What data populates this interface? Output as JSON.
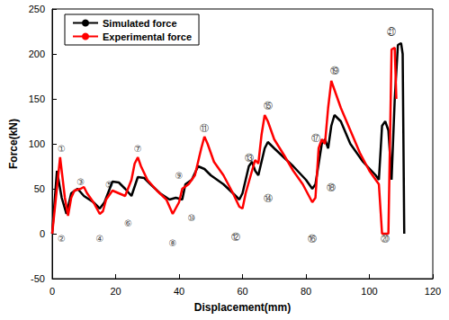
{
  "chart_data": {
    "type": "line",
    "x_label": "Displacement(mm)",
    "y_label": "Force(kN)",
    "xlim": [
      0,
      120
    ],
    "xticks": [
      0,
      20,
      40,
      60,
      80,
      100,
      120
    ],
    "ylim": [
      -50,
      250
    ],
    "yticks": [
      -50,
      0,
      50,
      100,
      150,
      200,
      250
    ],
    "grid": false,
    "legend": "upper left",
    "marker": "none",
    "series": [
      {
        "name": "Simulated force",
        "color": "#000000",
        "x": [
          0,
          1.5,
          3,
          4.5,
          6,
          8,
          10,
          13,
          15,
          16.5,
          19,
          21,
          23,
          25,
          27,
          29,
          31,
          34,
          37,
          39,
          41,
          42,
          44,
          46,
          48,
          50,
          54,
          57,
          59,
          60,
          62,
          63,
          64,
          65,
          67,
          68,
          70,
          73,
          76,
          80,
          82,
          83,
          85,
          86,
          87,
          88,
          89,
          91,
          94,
          98,
          102,
          103,
          104,
          105,
          106,
          107,
          108,
          109,
          110,
          110.5,
          111
        ],
        "values": [
          0,
          70,
          40,
          22,
          45,
          50,
          42,
          35,
          28,
          35,
          58,
          57,
          50,
          42,
          63,
          62,
          55,
          45,
          38,
          40,
          38,
          55,
          60,
          75,
          72,
          65,
          55,
          45,
          38,
          45,
          75,
          80,
          70,
          65,
          95,
          102,
          95,
          85,
          75,
          60,
          50,
          55,
          100,
          105,
          95,
          120,
          132,
          125,
          100,
          80,
          65,
          60,
          120,
          125,
          115,
          60,
          150,
          210,
          212,
          200,
          0
        ]
      },
      {
        "name": "Experimental force",
        "color": "#ff0000",
        "x": [
          0,
          2.5,
          4,
          5,
          6,
          7,
          9,
          10,
          11,
          13,
          15,
          16,
          17,
          19,
          21,
          23,
          25,
          26,
          27,
          28,
          30,
          33,
          36,
          38,
          40,
          41,
          43,
          45,
          47,
          48,
          49,
          51,
          54,
          57,
          59,
          60,
          61,
          63,
          64,
          65,
          66,
          67,
          68,
          70,
          73,
          76,
          79,
          82,
          83,
          84,
          85,
          86,
          87,
          88,
          89,
          91,
          94,
          97,
          100,
          103,
          104,
          105,
          106,
          107,
          108,
          108.5
        ],
        "values": [
          0,
          85,
          40,
          20,
          40,
          48,
          50,
          52,
          45,
          35,
          22,
          25,
          38,
          48,
          45,
          42,
          60,
          78,
          85,
          75,
          60,
          48,
          38,
          22,
          35,
          50,
          55,
          65,
          95,
          108,
          100,
          80,
          65,
          45,
          30,
          28,
          45,
          70,
          82,
          78,
          110,
          132,
          125,
          105,
          88,
          70,
          55,
          35,
          40,
          95,
          105,
          100,
          140,
          170,
          160,
          140,
          115,
          90,
          70,
          55,
          0,
          0,
          0,
          205,
          207,
          150
        ]
      }
    ],
    "annotations": [
      {
        "text": "①",
        "x": 3,
        "y": 95
      },
      {
        "text": "②",
        "x": 3,
        "y": -5
      },
      {
        "text": "③",
        "x": 9,
        "y": 58
      },
      {
        "text": "④",
        "x": 15,
        "y": -5
      },
      {
        "text": "⑤",
        "x": 18,
        "y": 55
      },
      {
        "text": "⑥",
        "x": 24,
        "y": 12
      },
      {
        "text": "⑦",
        "x": 27,
        "y": 95
      },
      {
        "text": "⑧",
        "x": 38,
        "y": -10
      },
      {
        "text": "⑨",
        "x": 40,
        "y": 65
      },
      {
        "text": "⑩",
        "x": 44,
        "y": 18
      },
      {
        "text": "⑪",
        "x": 48,
        "y": 118
      },
      {
        "text": "⑫",
        "x": 58,
        "y": -3
      },
      {
        "text": "⑬",
        "x": 62,
        "y": 85
      },
      {
        "text": "⑭",
        "x": 68,
        "y": 40
      },
      {
        "text": "⑮",
        "x": 68,
        "y": 143
      },
      {
        "text": "⑯",
        "x": 82,
        "y": -5
      },
      {
        "text": "⑰",
        "x": 83,
        "y": 107
      },
      {
        "text": "⑱",
        "x": 88,
        "y": 52
      },
      {
        "text": "⑲",
        "x": 89,
        "y": 182
      },
      {
        "text": "⑳",
        "x": 105,
        "y": -5
      },
      {
        "text": "㉑",
        "x": 107,
        "y": 225
      }
    ]
  }
}
